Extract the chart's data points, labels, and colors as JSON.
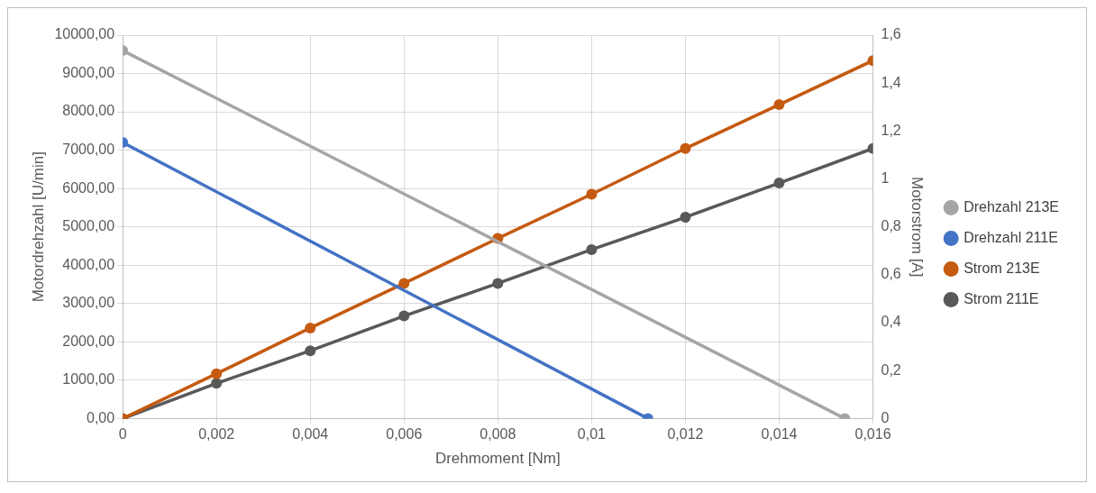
{
  "chart_data": {
    "type": "line",
    "xlabel": "Drehmoment [Nm]",
    "ylabel": "Motordrehzahl [U/min]",
    "y2label": "Motorstrom [A]",
    "series": [
      {
        "name": "Drehzahl 213E",
        "color": "#a5a5a5",
        "x": [
          0,
          0.0154
        ],
        "values": [
          9600,
          0
        ]
      },
      {
        "name": "Drehzahl 211E",
        "color": "#4472c4",
        "x": [
          0,
          0.0112
        ],
        "values": [
          7200,
          0
        ]
      },
      {
        "name": "Strom 213E",
        "color": "#c55a11",
        "axis": "y2",
        "x": [
          0,
          0.002,
          0.004,
          0.006,
          0.008,
          0.01,
          0.012,
          0.014,
          0.016
        ],
        "values": [
          0,
          0.187,
          0.378,
          0.564,
          0.752,
          0.936,
          1.127,
          1.31,
          1.494
        ]
      },
      {
        "name": "Strom 211E",
        "color": "#595959",
        "axis": "y2",
        "x": [
          0,
          0.002,
          0.004,
          0.006,
          0.008,
          0.01,
          0.012,
          0.014,
          0.016
        ],
        "values": [
          0,
          0.147,
          0.283,
          0.428,
          0.564,
          0.705,
          0.84,
          0.983,
          1.127
        ]
      }
    ],
    "xlim": [
      0,
      0.016
    ],
    "xticks": [
      0,
      {
        "value": 0.002,
        "label": "0,002"
      },
      {
        "value": 0.004,
        "label": "0,004"
      },
      {
        "value": 0.006,
        "label": "0,006"
      },
      {
        "value": 0.008,
        "label": "0,008"
      },
      {
        "value": 0.01,
        "label": "0,01"
      },
      {
        "value": 0.012,
        "label": "0,012"
      },
      {
        "value": 0.014,
        "label": "0,014"
      },
      {
        "value": 0.016,
        "label": "0,016"
      }
    ],
    "ylim": [
      0,
      10000
    ],
    "yticks": [
      {
        "value": 0,
        "label": "0,00"
      },
      {
        "value": 1000,
        "label": "1000,00"
      },
      {
        "value": 2000,
        "label": "2000,00"
      },
      {
        "value": 3000,
        "label": "3000,00"
      },
      {
        "value": 4000,
        "label": "4000,00"
      },
      {
        "value": 5000,
        "label": "5000,00"
      },
      {
        "value": 6000,
        "label": "6000,00"
      },
      {
        "value": 7000,
        "label": "7000,00"
      },
      {
        "value": 8000,
        "label": "8000,00"
      },
      {
        "value": 9000,
        "label": "9000,00"
      },
      {
        "value": 10000,
        "label": "10000,00"
      }
    ],
    "y2lim": [
      0,
      1.6
    ],
    "y2ticks": [
      0,
      {
        "value": 0.2,
        "label": "0,2"
      },
      {
        "value": 0.4,
        "label": "0,4"
      },
      {
        "value": 0.6,
        "label": "0,6"
      },
      {
        "value": 0.8,
        "label": "0,8"
      },
      1,
      {
        "value": 1.2,
        "label": "1,2"
      },
      {
        "value": 1.4,
        "label": "1,4"
      },
      {
        "value": 1.6,
        "label": "1,6"
      }
    ],
    "grid": true,
    "legend": "right",
    "marker": "circle",
    "line_style": "solid"
  }
}
